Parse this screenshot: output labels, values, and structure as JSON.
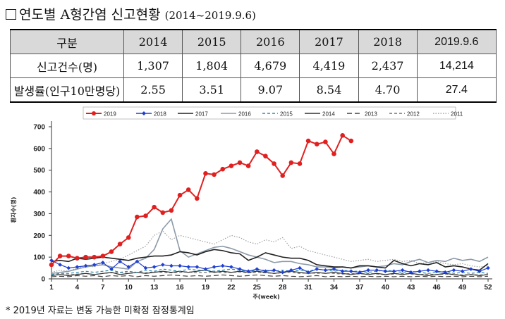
{
  "header": {
    "box": "□",
    "title": "연도별 A형간염 신고현황",
    "subtitle": "(2014~2019.9.6)"
  },
  "table": {
    "columns": [
      "구분",
      "2014",
      "2015",
      "2016",
      "2017",
      "2018",
      "2019.9.6"
    ],
    "rows": [
      [
        "신고건수(명)",
        "1,307",
        "1,804",
        "4,679",
        "4,419",
        "2,437",
        "14,214"
      ],
      [
        "발생률(인구10만명당)",
        "2.55",
        "3.51",
        "9.07",
        "8.54",
        "4.70",
        "27.4"
      ]
    ]
  },
  "footnote": "* 2019년 자료는 변동 가능한 미확정 잠정통계임",
  "chart_data": {
    "type": "line",
    "xlabel": "주(week)",
    "ylabel": "환자수(명)",
    "ylim": [
      0,
      700
    ],
    "xlim": [
      1,
      52
    ],
    "yticks": [
      0,
      100,
      200,
      300,
      400,
      500,
      600,
      700
    ],
    "xticks": [
      1,
      4,
      7,
      10,
      13,
      16,
      19,
      22,
      25,
      28,
      31,
      34,
      37,
      40,
      43,
      46,
      49,
      52
    ],
    "grid": false,
    "legend": "top",
    "series": [
      {
        "name": "2019",
        "color": "#e02020",
        "style": "solid-marker-circle",
        "values": [
          65,
          105,
          105,
          95,
          100,
          100,
          105,
          125,
          160,
          190,
          285,
          290,
          330,
          305,
          315,
          385,
          410,
          370,
          485,
          480,
          505,
          520,
          535,
          520,
          585,
          565,
          530,
          475,
          535,
          530,
          635,
          620,
          630,
          575,
          660,
          635
        ]
      },
      {
        "name": "2018",
        "color": "#1f3fd0",
        "style": "solid-marker-diamond",
        "values": [
          85,
          65,
          50,
          55,
          60,
          65,
          75,
          45,
          80,
          55,
          80,
          50,
          55,
          65,
          60,
          60,
          55,
          55,
          45,
          55,
          60,
          55,
          45,
          35,
          45,
          35,
          40,
          30,
          40,
          50,
          30,
          45,
          40,
          45,
          35,
          35,
          30,
          40,
          40,
          35,
          35,
          40,
          30,
          35,
          40,
          35,
          30,
          40,
          35,
          45,
          35,
          50
        ]
      },
      {
        "name": "2017",
        "color": "#202020",
        "style": "solid",
        "values": [
          80,
          85,
          80,
          95,
          90,
          95,
          100,
          95,
          90,
          85,
          95,
          100,
          105,
          105,
          110,
          125,
          120,
          110,
          125,
          135,
          130,
          120,
          115,
          85,
          100,
          120,
          110,
          100,
          95,
          95,
          85,
          65,
          60,
          55,
          55,
          50,
          60,
          60,
          55,
          50,
          85,
          70,
          60,
          70,
          65,
          75,
          55,
          60,
          55,
          45,
          40,
          70
        ]
      },
      {
        "name": "2016",
        "color": "#8c9aa8",
        "style": "solid",
        "values": [
          25,
          30,
          35,
          45,
          55,
          60,
          65,
          55,
          50,
          45,
          80,
          95,
          135,
          230,
          275,
          130,
          100,
          115,
          130,
          145,
          150,
          140,
          125,
          110,
          100,
          90,
          75,
          80,
          80,
          70,
          65,
          55,
          55,
          50,
          55,
          50,
          55,
          60,
          55,
          60,
          70,
          65,
          80,
          90,
          75,
          85,
          80,
          95,
          85,
          90,
          80,
          100
        ]
      },
      {
        "name": "2015",
        "color": "#2a8ab0",
        "style": "dashed",
        "values": [
          20,
          25,
          25,
          30,
          35,
          30,
          35,
          40,
          30,
          35,
          30,
          40,
          35,
          45,
          40,
          35,
          45,
          40,
          40,
          35,
          40,
          45,
          40,
          35,
          40,
          40,
          35,
          40,
          35,
          40,
          35,
          45,
          40,
          35,
          40,
          35,
          35,
          30,
          35,
          40,
          35,
          30,
          35,
          30,
          25,
          30,
          35,
          25,
          30,
          25,
          30,
          25
        ]
      },
      {
        "name": "2014",
        "color": "#303030",
        "style": "solid",
        "values": [
          15,
          20,
          15,
          20,
          25,
          20,
          25,
          30,
          20,
          25,
          30,
          25,
          30,
          35,
          30,
          35,
          30,
          35,
          40,
          30,
          35,
          30,
          35,
          30,
          35,
          30,
          25,
          30,
          35,
          30,
          25,
          30,
          25,
          30,
          25,
          20,
          25,
          20,
          25,
          20,
          25,
          20,
          25,
          20,
          15,
          20,
          25,
          20,
          15,
          20,
          15,
          20
        ]
      },
      {
        "name": "2013",
        "color": "#404040",
        "style": "long-dash",
        "values": [
          10,
          12,
          10,
          15,
          12,
          15,
          10,
          15,
          12,
          15,
          10,
          15,
          12,
          15,
          18,
          15,
          12,
          15,
          12,
          15,
          18,
          15,
          12,
          15,
          18,
          15,
          12,
          15,
          12,
          10,
          12,
          15,
          10,
          12,
          10,
          12,
          10,
          12,
          10,
          12,
          10,
          12,
          10,
          12,
          10,
          12,
          10,
          12,
          10,
          12,
          10,
          12
        ]
      },
      {
        "name": "2012",
        "color": "#707070",
        "style": "dashed",
        "values": [
          15,
          20,
          18,
          22,
          25,
          20,
          25,
          28,
          30,
          25,
          30,
          28,
          32,
          30,
          28,
          30,
          32,
          28,
          30,
          32,
          28,
          30,
          32,
          28,
          30,
          28,
          25,
          28,
          30,
          25,
          28,
          25,
          28,
          25,
          22,
          25,
          22,
          25,
          22,
          20,
          22,
          25,
          22,
          20,
          22,
          20,
          22,
          20,
          18,
          20,
          18,
          20
        ]
      },
      {
        "name": "2011",
        "color": "#a0a0a0",
        "style": "dotted",
        "values": [
          30,
          40,
          35,
          50,
          60,
          55,
          70,
          80,
          90,
          110,
          130,
          150,
          200,
          220,
          180,
          200,
          190,
          180,
          170,
          160,
          180,
          200,
          190,
          170,
          160,
          180,
          170,
          190,
          140,
          150,
          130,
          120,
          110,
          100,
          90,
          80,
          85,
          90,
          80,
          85,
          90,
          80,
          85,
          70,
          75,
          80,
          70,
          65,
          70,
          60,
          55,
          60
        ]
      }
    ]
  }
}
